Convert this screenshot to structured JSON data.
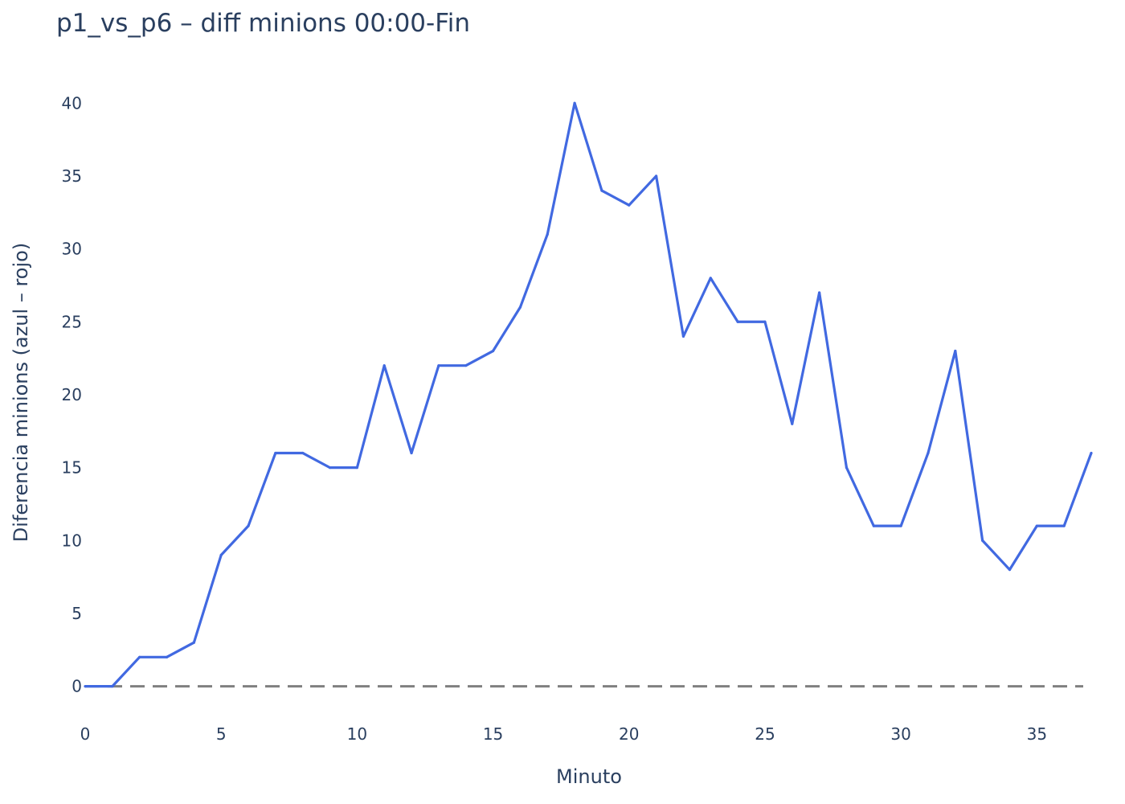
{
  "colors": {
    "background": "#ffffff",
    "text": "#2a3f5f",
    "series_line": "#4169e1",
    "zero_line": "#808080"
  },
  "chart_data": {
    "type": "line",
    "title": "p1_vs_p6 – diff minions 00:00-Fin",
    "xlabel": "Minuto",
    "ylabel": "Diferencia minions (azul – rojo)",
    "xlim": [
      0,
      37
    ],
    "ylim": [
      -3,
      42
    ],
    "x_ticks": [
      0,
      5,
      10,
      15,
      20,
      25,
      30,
      35
    ],
    "y_ticks": [
      0,
      5,
      10,
      15,
      20,
      25,
      30,
      35,
      40
    ],
    "grid": false,
    "reference_line": {
      "y": 0,
      "style": "dashed",
      "color": "#808080"
    },
    "series": [
      {
        "color": "#4169e1",
        "x": [
          0,
          1,
          2,
          3,
          4,
          5,
          6,
          7,
          8,
          9,
          10,
          11,
          12,
          13,
          14,
          15,
          16,
          17,
          18,
          19,
          20,
          21,
          22,
          23,
          24,
          25,
          26,
          27,
          28,
          29,
          30,
          31,
          32,
          33,
          34,
          35,
          36,
          37
        ],
        "values": [
          0,
          0,
          2,
          2,
          3,
          9,
          11,
          16,
          16,
          15,
          15,
          22,
          16,
          22,
          22,
          23,
          26,
          31,
          40,
          34,
          33,
          35,
          24,
          28,
          25,
          25,
          18,
          27,
          15,
          11,
          11,
          16,
          23,
          10,
          8,
          11,
          11,
          16
        ]
      }
    ]
  }
}
